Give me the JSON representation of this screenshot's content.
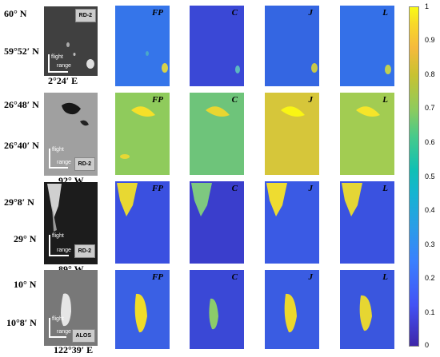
{
  "rows": [
    {
      "lat_top": "60° N",
      "lat_bottom": "59°52′ N",
      "lon": "2°24′ E",
      "sensor": "RD-2",
      "flight_label": "flight",
      "range_label": "range",
      "panels": [
        "FP",
        "C",
        "J",
        "L"
      ]
    },
    {
      "lat_top": "26°48′ N",
      "lat_bottom": "26°40′ N",
      "lon": "92° W",
      "sensor": "RD-2",
      "flight_label": "flight",
      "range_label": "range",
      "panels": [
        "FP",
        "C",
        "J",
        "L"
      ]
    },
    {
      "lat_top": "29°8′ N",
      "lat_bottom": "29° N",
      "lon": "89° W",
      "sensor": "RD-2",
      "flight_label": "flight",
      "range_label": "range",
      "panels": [
        "FP",
        "C",
        "J",
        "L"
      ]
    },
    {
      "lat_top": "10° N",
      "lat_bottom": "10°8′ N",
      "lon": "122°39′ E",
      "sensor": "ALOS",
      "flight_label": "flight",
      "range_label": "range",
      "panels": [
        "FP",
        "C",
        "J",
        "L"
      ]
    }
  ],
  "colorbar": {
    "ticks": [
      "1",
      "0.9",
      "0.8",
      "0.7",
      "0.6",
      "0.5",
      "0.4",
      "0.3",
      "0.2",
      "0.1",
      "0"
    ],
    "colormap": "parula",
    "min": 0,
    "max": 1
  }
}
